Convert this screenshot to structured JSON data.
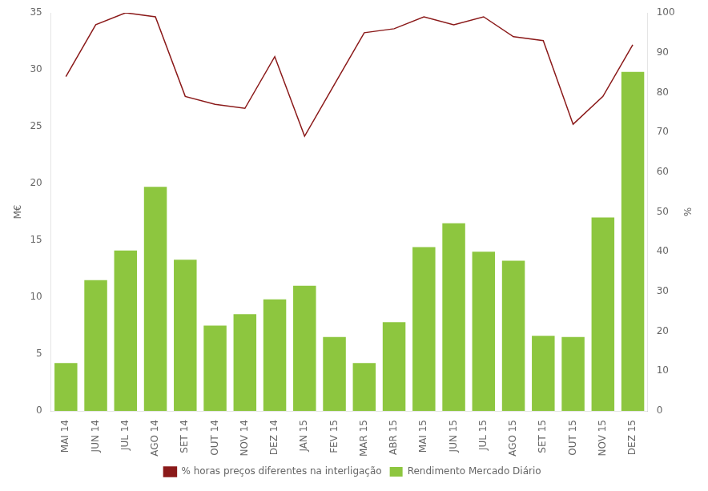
{
  "chart_data": {
    "type": "bar",
    "categories": [
      "MAI 14",
      "JUN 14",
      "JUL 14",
      "AGO 14",
      "SET 14",
      "OUT 14",
      "NOV 14",
      "DEZ 14",
      "JAN 15",
      "FEV 15",
      "MAR 15",
      "ABR 15",
      "MAI 15",
      "JUN 15",
      "JUL 15",
      "AGO 15",
      "SET 15",
      "OUT 15",
      "NOV 15",
      "DEZ 15"
    ],
    "series": [
      {
        "name": "Rendimento Mercado Diário",
        "type": "bar",
        "color": "#8dc63f",
        "values": [
          4.2,
          11.5,
          14.1,
          19.7,
          13.3,
          7.5,
          8.5,
          9.8,
          11.0,
          6.5,
          4.2,
          7.8,
          14.4,
          16.5,
          14.0,
          13.2,
          6.6,
          6.5,
          17.0,
          29.8
        ]
      },
      {
        "name": "% horas preços diferentes na interligação",
        "type": "line",
        "color": "#8b1a1a",
        "axis": "y2",
        "values": [
          84,
          97,
          100,
          99,
          79,
          77,
          76,
          89,
          69,
          82,
          95,
          96,
          99,
          97,
          99,
          94,
          93,
          72,
          79,
          92
        ]
      }
    ],
    "ylabel": "M€",
    "y2label": "%",
    "ylim": [
      0,
      35
    ],
    "yticks": [
      0,
      5,
      10,
      15,
      20,
      25,
      30,
      35
    ],
    "y2lim": [
      0,
      100
    ],
    "y2ticks": [
      0,
      10,
      20,
      30,
      40,
      50,
      60,
      70,
      80,
      90,
      100
    ],
    "grid": false,
    "legend": "bottom"
  }
}
